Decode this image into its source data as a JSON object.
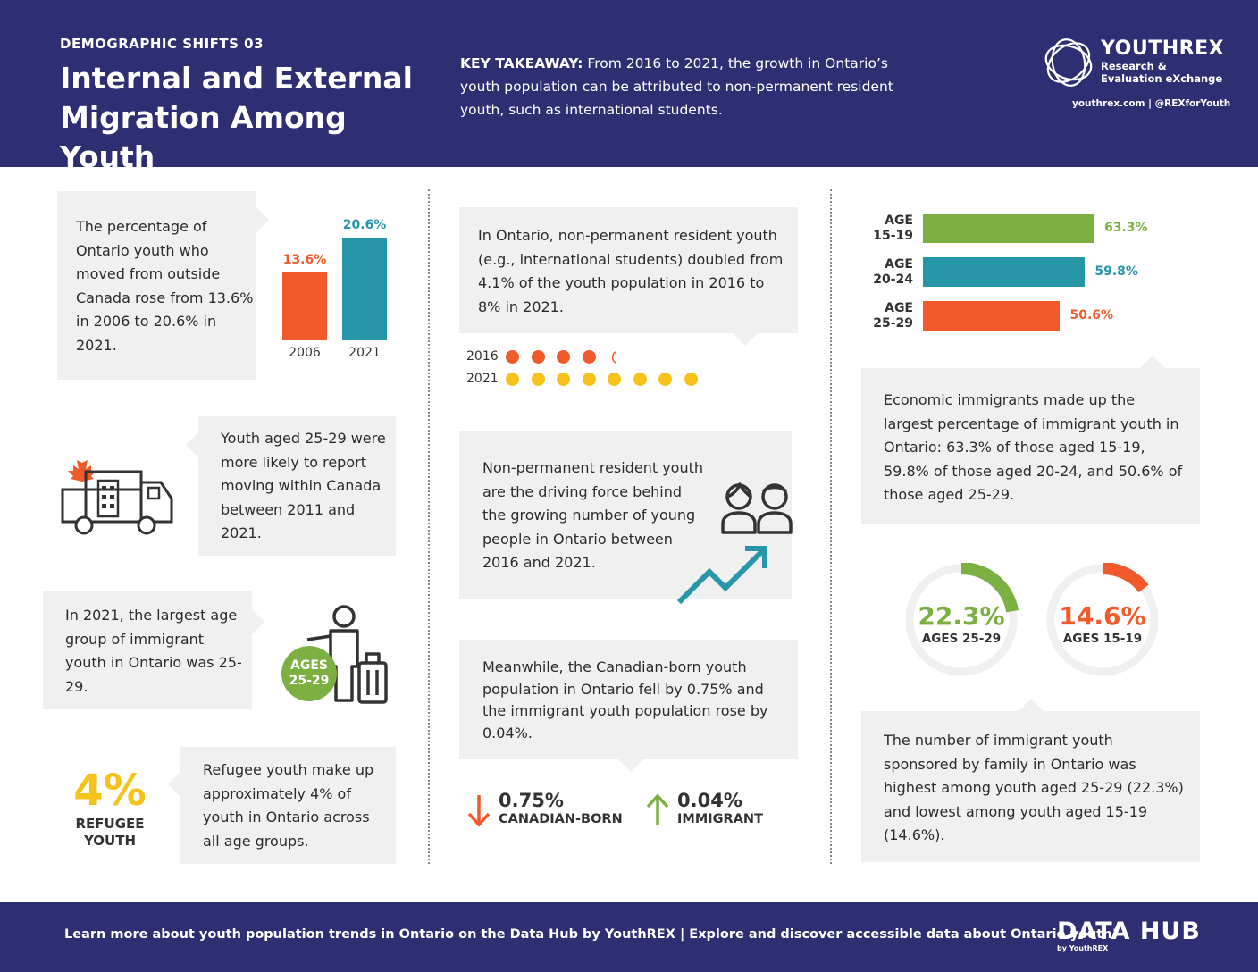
{
  "header": {
    "kicker": "DEMOGRAPHIC SHIFTS 03",
    "title_line1": "Internal and External",
    "title_line2": "Migration Among Youth",
    "takeaway_label": "KEY TAKEAWAY:",
    "takeaway_text": " From 2016 to 2021, the growth in Ontario’s youth population can be attributed to non-permanent resident youth, such as international students.",
    "logo_name": "YOUTHREX",
    "logo_sub1": "Research &",
    "logo_sub2": "Evaluation eXchange",
    "logo_links": "youthrex.com | @REXforYouth"
  },
  "col1": {
    "outside_canada_text": "The percentage of Ontario youth who moved from outside Canada rose from 13.6% in 2006 to 20.6% in 2021.",
    "bar_chart": {
      "bars": [
        {
          "year": "2006",
          "label": "13.6%",
          "value": 13.6,
          "color": "#f15a2b"
        },
        {
          "year": "2021",
          "label": "20.6%",
          "value": 20.6,
          "color": "#2796a9"
        }
      ],
      "max": 20.6
    },
    "within_canada_text": "Youth aged 25-29 were more likely to report moving within Canada between 2011 and 2021.",
    "largest_group_text": "In 2021, the largest age group of immigrant youth in Ontario was 25-29.",
    "badge_line1": "AGES",
    "badge_line2": "25-29",
    "refugee_pct": "4%",
    "refugee_label1": "REFUGEE",
    "refugee_label2": "YOUTH",
    "refugee_text": "Refugee youth make up approximately 4% of youth in Ontario across all age groups."
  },
  "col2": {
    "npr_text": "In Ontario, non-permanent resident youth (e.g., international students) doubled from 4.1% of the youth population in 2016 to 8% in 2021.",
    "dots": {
      "year_2016": "2016",
      "value_2016": 4.1,
      "year_2021": "2021",
      "value_2021": 8,
      "color_2016": "#f15a2b",
      "color_2021": "#f7c31a"
    },
    "driving_text": "Non-permanent resident youth are the driving force behind the growing number of young people in Ontario between 2016 and 2021.",
    "meanwhile_text": "Meanwhile, the Canadian-born youth population in Ontario fell by 0.75% and the immigrant youth population rose by 0.04%.",
    "down_value": "0.75%",
    "down_label": "CANADIAN-BORN",
    "up_value": "0.04%",
    "up_label": "IMMIGRANT"
  },
  "col3": {
    "hbar": [
      {
        "age1": "AGE",
        "age2": "15-19",
        "label": "63.3%",
        "value": 63.3,
        "color": "#7cb042"
      },
      {
        "age1": "AGE",
        "age2": "20-24",
        "label": "59.8%",
        "value": 59.8,
        "color": "#2796a9"
      },
      {
        "age1": "AGE",
        "age2": "25-29",
        "label": "50.6%",
        "value": 50.6,
        "color": "#f15a2b"
      }
    ],
    "economic_text": "Economic immigrants made up the largest percentage of immigrant youth in Ontario: 63.3% of those aged 15-19, 59.8% of those aged 20-24, and 50.6% of those aged 25-29.",
    "donuts": [
      {
        "value": 22.3,
        "label": "22.3%",
        "age": "AGES 25-29",
        "color": "#7cb042"
      },
      {
        "value": 14.6,
        "label": "14.6%",
        "age": "AGES 15-19",
        "color": "#f15a2b"
      }
    ],
    "sponsored_text": "The number of immigrant youth sponsored by family in Ontario was highest among youth aged 25-29 (22.3%) and lowest among youth aged 15-19 (14.6%)."
  },
  "footer": {
    "text": "Learn more about youth population trends in Ontario on the Data Hub by YouthREX | Explore and discover accessible data about Ontario youth!",
    "datahub": "DATA HUB",
    "datahub_sub": "by YouthREX"
  }
}
